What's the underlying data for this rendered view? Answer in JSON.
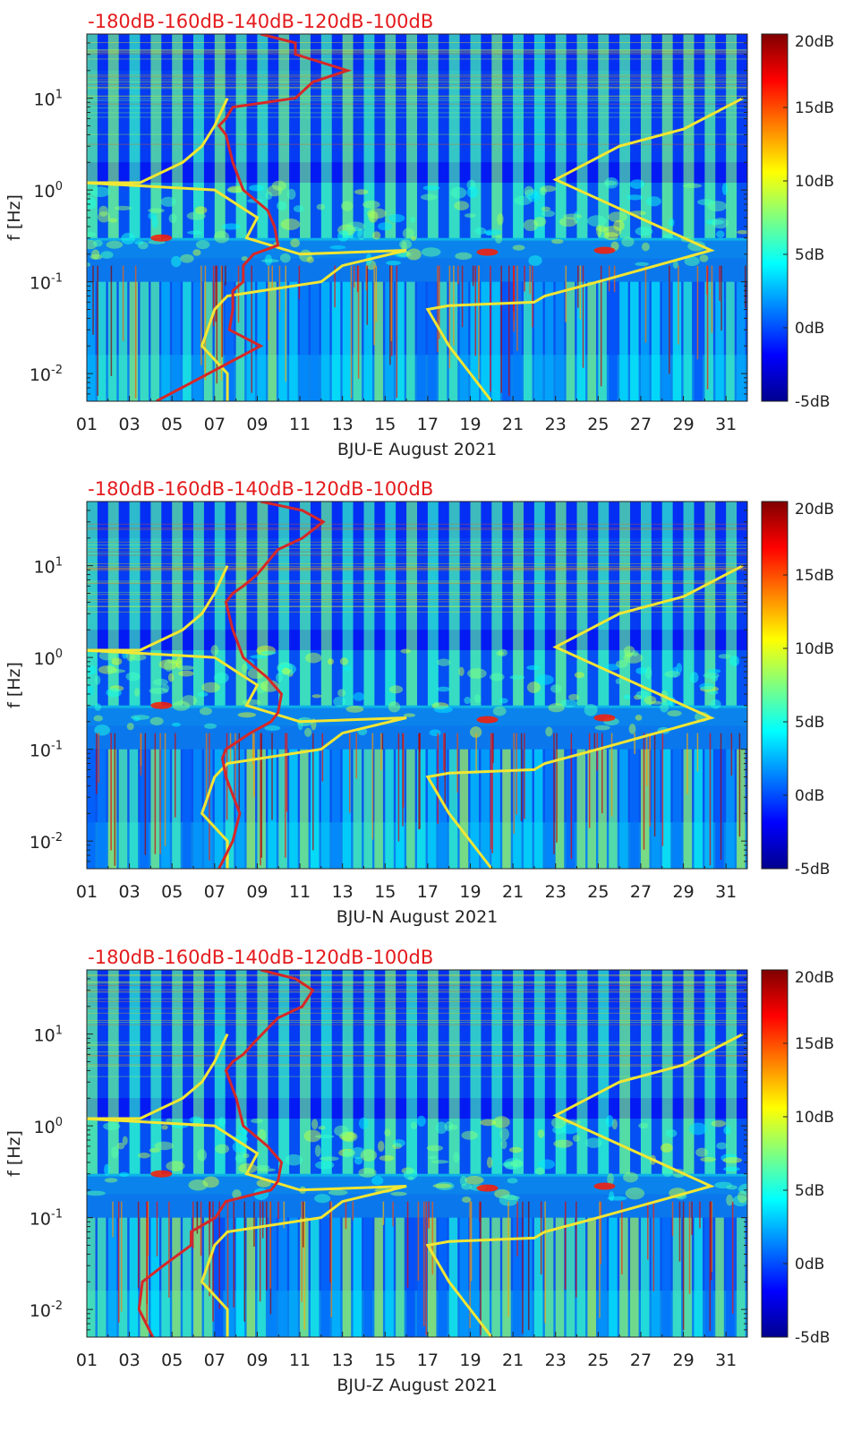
{
  "colorbar": {
    "ticks": [
      "20dB",
      "15dB",
      "10dB",
      "5dB",
      "0dB",
      "-5dB"
    ],
    "range": [
      -5,
      20
    ],
    "colormap": "jet"
  },
  "colors": {
    "top_axis_labels": "#e41a1c",
    "red_curve": "#d62728",
    "yellow_curve": "#f2e633",
    "background_field": "#1f4fd8"
  },
  "chart_data": [
    {
      "type": "heatmap",
      "title": "",
      "xlabel": "BJU-E August 2021",
      "ylabel": "f [Hz]",
      "x_ticks": [
        "01",
        "03",
        "05",
        "07",
        "09",
        "11",
        "13",
        "15",
        "17",
        "19",
        "21",
        "23",
        "25",
        "27",
        "29",
        "31"
      ],
      "xlim": [
        1,
        32
      ],
      "y_scale": "log",
      "ylim": [
        0.005,
        50
      ],
      "y_ticks": [
        {
          "base": "10",
          "exp": "1"
        },
        {
          "base": "10",
          "exp": "0"
        },
        {
          "base": "10",
          "exp": "-1"
        },
        {
          "base": "10",
          "exp": "-2"
        }
      ],
      "top_axis_ticks": [
        "-180dB",
        "-160dB",
        "-140dB",
        "-120dB",
        "-100dB"
      ],
      "top_axis_range_db": [
        -190,
        0
      ],
      "red_curve_x_db": [
        -170,
        -140,
        -149,
        -148,
        -148,
        -145,
        -145,
        -142,
        -135,
        -136,
        -138,
        -145,
        -148,
        -150,
        -152,
        -150,
        -148,
        -130,
        -125,
        -115,
        -130,
        -130,
        -140
      ],
      "red_curve_f_hz": [
        0.005,
        0.02,
        0.03,
        0.05,
        0.08,
        0.1,
        0.15,
        0.2,
        0.25,
        0.4,
        0.6,
        1,
        2,
        4,
        5,
        6,
        8,
        10,
        15,
        20,
        30,
        40,
        50
      ],
      "yellow_left_x_day": [
        7.6,
        7.0,
        6.4,
        5.5,
        3.5,
        2.3,
        0.8,
        7.0,
        9.0,
        8.5,
        11.0,
        16.0,
        13.0,
        12.0,
        7.6,
        7.0,
        6.4,
        7.6,
        7.6
      ],
      "yellow_left_f_hz": [
        10,
        5,
        3,
        2,
        1.2,
        1.2,
        1.2,
        1,
        0.5,
        0.3,
        0.2,
        0.22,
        0.15,
        0.1,
        0.07,
        0.05,
        0.02,
        0.01,
        0.005
      ],
      "yellow_right_x_day": [
        20.0,
        18.0,
        17.0,
        18.0,
        22.0,
        22.5,
        25.0,
        30.3,
        23.0,
        26.0,
        29.0,
        31.8
      ],
      "yellow_right_f_hz": [
        0.005,
        0.02,
        0.05,
        0.055,
        0.06,
        0.07,
        0.1,
        0.22,
        1.3,
        3.0,
        4.6,
        10
      ]
    },
    {
      "type": "heatmap",
      "title": "",
      "xlabel": "BJU-N August 2021",
      "ylabel": "f [Hz]",
      "x_ticks": [
        "01",
        "03",
        "05",
        "07",
        "09",
        "11",
        "13",
        "15",
        "17",
        "19",
        "21",
        "23",
        "25",
        "27",
        "29",
        "31"
      ],
      "xlim": [
        1,
        32
      ],
      "y_scale": "log",
      "ylim": [
        0.005,
        50
      ],
      "y_ticks": [
        {
          "base": "10",
          "exp": "1"
        },
        {
          "base": "10",
          "exp": "0"
        },
        {
          "base": "10",
          "exp": "-1"
        },
        {
          "base": "10",
          "exp": "-2"
        }
      ],
      "top_axis_ticks": [
        "-180dB",
        "-160dB",
        "-140dB",
        "-120dB",
        "-100dB"
      ],
      "top_axis_range_db": [
        -190,
        0
      ],
      "red_curve_x_db": [
        -152,
        -148,
        -146,
        -150,
        -151,
        -150,
        -143,
        -137,
        -135,
        -134,
        -138,
        -145,
        -148,
        -150,
        -148,
        -145,
        -141,
        -135,
        -128,
        -122,
        -128,
        -140
      ],
      "red_curve_f_hz": [
        0.005,
        0.01,
        0.02,
        0.05,
        0.08,
        0.1,
        0.15,
        0.2,
        0.25,
        0.4,
        0.6,
        1,
        2,
        4,
        5,
        6,
        8,
        15,
        20,
        30,
        40,
        50
      ],
      "yellow_left_x_day": [
        7.6,
        7.0,
        6.4,
        5.5,
        3.5,
        2.3,
        0.8,
        7.0,
        9.0,
        8.5,
        11.0,
        16.0,
        13.0,
        12.0,
        7.6,
        7.0,
        6.4,
        7.6,
        7.6
      ],
      "yellow_left_f_hz": [
        10,
        5,
        3,
        2,
        1.2,
        1.2,
        1.2,
        1,
        0.5,
        0.3,
        0.2,
        0.22,
        0.15,
        0.1,
        0.07,
        0.05,
        0.02,
        0.01,
        0.005
      ],
      "yellow_right_x_day": [
        20.0,
        18.0,
        17.0,
        18.0,
        22.0,
        22.5,
        25.0,
        30.3,
        23.0,
        26.0,
        29.0,
        31.8
      ],
      "yellow_right_f_hz": [
        0.005,
        0.02,
        0.05,
        0.055,
        0.06,
        0.07,
        0.1,
        0.22,
        1.3,
        3.0,
        4.6,
        10
      ]
    },
    {
      "type": "heatmap",
      "title": "",
      "xlabel": "BJU-Z August 2021",
      "ylabel": "f [Hz]",
      "x_ticks": [
        "01",
        "03",
        "05",
        "07",
        "09",
        "11",
        "13",
        "15",
        "17",
        "19",
        "21",
        "23",
        "25",
        "27",
        "29",
        "31"
      ],
      "xlim": [
        1,
        32
      ],
      "y_scale": "log",
      "ylim": [
        0.005,
        50
      ],
      "y_ticks": [
        {
          "base": "10",
          "exp": "1"
        },
        {
          "base": "10",
          "exp": "0"
        },
        {
          "base": "10",
          "exp": "-1"
        },
        {
          "base": "10",
          "exp": "-2"
        }
      ],
      "top_axis_ticks": [
        "-180dB",
        "-160dB",
        "-140dB",
        "-120dB",
        "-100dB"
      ],
      "top_axis_range_db": [
        -190,
        0
      ],
      "red_curve_x_db": [
        -171,
        -175,
        -174,
        -168,
        -160,
        -160,
        -153,
        -150,
        -137,
        -135,
        -134,
        -138,
        -145,
        -147,
        -150,
        -148,
        -145,
        -142,
        -135,
        -128,
        -125,
        -130,
        -140
      ],
      "red_curve_f_hz": [
        0.005,
        0.01,
        0.02,
        0.03,
        0.05,
        0.07,
        0.1,
        0.15,
        0.2,
        0.25,
        0.4,
        0.6,
        1,
        2,
        4,
        5,
        6,
        8,
        15,
        20,
        30,
        40,
        50
      ],
      "yellow_left_x_day": [
        7.6,
        7.0,
        6.4,
        5.5,
        3.5,
        2.3,
        0.8,
        7.0,
        9.0,
        8.5,
        11.0,
        16.0,
        13.0,
        12.0,
        7.6,
        7.0,
        6.4,
        7.6,
        7.6
      ],
      "yellow_left_f_hz": [
        10,
        5,
        3,
        2,
        1.2,
        1.2,
        1.2,
        1,
        0.5,
        0.3,
        0.2,
        0.22,
        0.15,
        0.1,
        0.07,
        0.05,
        0.02,
        0.01,
        0.005
      ],
      "yellow_right_x_day": [
        20.0,
        18.0,
        17.0,
        18.0,
        22.0,
        22.5,
        25.0,
        30.3,
        23.0,
        26.0,
        29.0,
        31.8
      ],
      "yellow_right_f_hz": [
        0.005,
        0.02,
        0.05,
        0.055,
        0.06,
        0.07,
        0.1,
        0.22,
        1.3,
        3.0,
        4.6,
        10
      ]
    }
  ]
}
